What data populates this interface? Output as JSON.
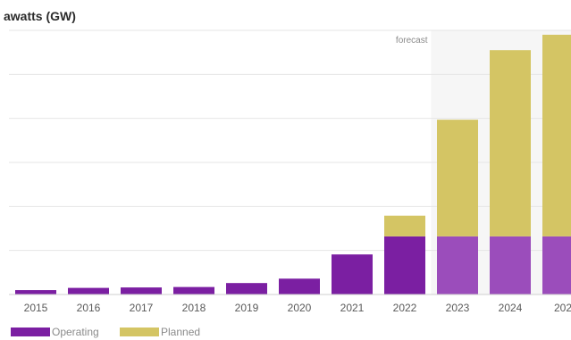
{
  "chart_data": {
    "type": "bar",
    "title": "awatts (GW)",
    "categories": [
      "2015",
      "2016",
      "2017",
      "2018",
      "2019",
      "2020",
      "2021",
      "2022",
      "2023",
      "2024",
      "202"
    ],
    "series": [
      {
        "name": "Operating",
        "values": [
          1,
          1.5,
          1.6,
          1.7,
          2.6,
          3.6,
          9.1,
          13.2,
          13.2,
          13.2,
          13.2
        ],
        "color": "#7b1fa2",
        "forecast_color": "#9b4dbb"
      },
      {
        "name": "Planned",
        "values": [
          0,
          0,
          0,
          0,
          0,
          0,
          0,
          4.7,
          26.5,
          42.3,
          45.8
        ],
        "color": "#d4c564"
      }
    ],
    "ylim": [
      0,
      60
    ],
    "grid": true,
    "stacked": true,
    "forecast_label": "forecast",
    "forecast_start_category": "2023",
    "legend_placement": "bottom-left"
  }
}
